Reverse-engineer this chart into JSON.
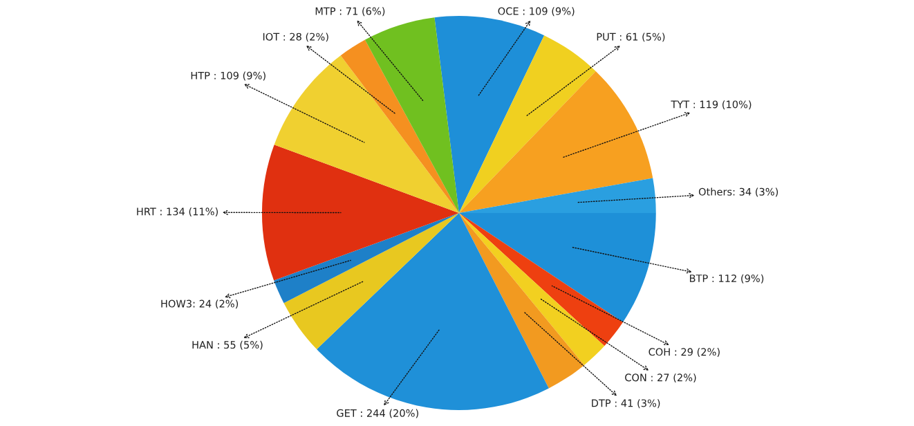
{
  "chart_data": {
    "type": "pie",
    "categories": [
      "OCE : 109 (9%)",
      "PUT : 61 (5%)",
      "TYT : 119 (10%)",
      "Others: 34 (3%)",
      "BTP : 112 (9%)",
      "COH : 29 (2%)",
      "CON : 27 (2%)",
      "DTP : 41 (3%)",
      "GET : 244 (20%)",
      "HAN : 55 (5%)",
      "HOW3: 24 (2%)",
      "HRT : 134 (11%)",
      "HTP : 109 (9%)",
      "IOT : 28 (2%)",
      "MTP : 71 (6%)"
    ],
    "values": [
      109,
      61,
      119,
      34,
      112,
      29,
      27,
      41,
      244,
      55,
      24,
      134,
      109,
      28,
      71
    ],
    "colors": [
      "#1e8fd8",
      "#f0d020",
      "#f7a020",
      "#2a9fe0",
      "#1e90d8",
      "#ee4010",
      "#f2d020",
      "#f29a20",
      "#1f90d8",
      "#e8c820",
      "#1e80c8",
      "#e03010",
      "#f0d030",
      "#f59020",
      "#70c020"
    ],
    "legend": false
  }
}
